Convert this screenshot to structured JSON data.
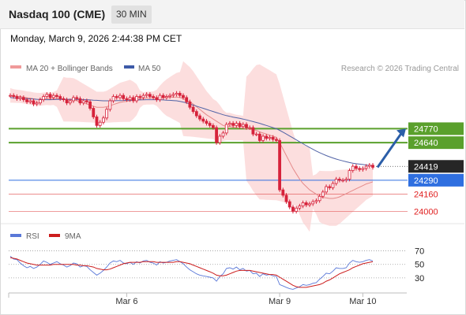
{
  "header": {
    "instrument": "Nasdaq 100 (CME)",
    "interval": "30 MIN",
    "timestamp": "Monday, March 9, 2026 2:44:38 PM CET"
  },
  "legend": {
    "bollinger": "MA 20 + Bollinger Bands",
    "ma50": "MA 50",
    "copyright": "Research © 2026 Trading Central",
    "rsi": "RSI",
    "rsi_ma": "9MA"
  },
  "colors": {
    "candle": "#d6233b",
    "band": "#fbd3d3",
    "ma20": "#e58a8a",
    "ma50": "#5163a6",
    "resistance": "#5aa02c",
    "pivot": "#2f6fe0",
    "support": "#e45a5a",
    "arrow": "#2b5ea8",
    "rsi": "#5a78d8",
    "rsi_ma": "#cc1d1d"
  },
  "chart_data": {
    "type": "candlestick",
    "x_ticks": [
      "Mar 6",
      "Mar 9",
      "Mar 10"
    ],
    "price_levels": [
      {
        "value": 24770,
        "label": "24770",
        "kind": "resistance"
      },
      {
        "value": 24640,
        "label": "24640",
        "kind": "resistance"
      },
      {
        "value": 24419,
        "label": "24419",
        "kind": "last"
      },
      {
        "value": 24290,
        "label": "24290",
        "kind": "pivot"
      },
      {
        "value": 24160,
        "label": "24160",
        "kind": "support"
      },
      {
        "value": 24000,
        "label": "24000",
        "kind": "support"
      }
    ],
    "price_close": [
      25080,
      25070,
      25050,
      25060,
      25040,
      25020,
      25030,
      25000,
      25010,
      25040,
      25070,
      25090,
      25060,
      25080,
      25070,
      25050,
      25040,
      25010,
      25030,
      25060,
      25050,
      25010,
      25030,
      25020,
      24960,
      24880,
      24800,
      24830,
      24870,
      24950,
      25030,
      25070,
      25060,
      25080,
      25050,
      25040,
      25060,
      25030,
      25070,
      25060,
      25080,
      25090,
      25070,
      25060,
      25040,
      25080,
      25060,
      25070,
      25080,
      25090,
      25100,
      25080,
      25060,
      25020,
      24970,
      24930,
      24890,
      24860,
      24840,
      24820,
      24800,
      24780,
      24640,
      24700,
      24730,
      24810,
      24820,
      24800,
      24820,
      24790,
      24810,
      24780,
      24780,
      24720,
      24720,
      24660,
      24700,
      24680,
      24690,
      24670,
      24660,
      24200,
      24150,
      24090,
      24040,
      24000,
      24030,
      24050,
      24080,
      24060,
      24070,
      24090,
      24100,
      24140,
      24180,
      24230,
      24220,
      24260,
      24300,
      24290,
      24290,
      24300,
      24380,
      24420,
      24400,
      24390,
      24400,
      24420,
      24430,
      24410
    ],
    "ma20": [
      25080,
      25075,
      25072,
      25070,
      25065,
      25058,
      25055,
      25048,
      25044,
      25043,
      25047,
      25050,
      25047,
      25052,
      25050,
      25048,
      25044,
      25040,
      25040,
      25038,
      25030,
      25020,
      25010,
      25000,
      24990,
      24980,
      24970,
      24970,
      24970,
      24975,
      24985,
      24995,
      25005,
      25015,
      25020,
      25025,
      25030,
      25035,
      25040,
      25045,
      25050,
      25055,
      25055,
      25057,
      25058,
      25060,
      25060,
      25060,
      25062,
      25064,
      25065,
      25060,
      25050,
      25035,
      25020,
      25000,
      24975,
      24950,
      24925,
      24900,
      24880,
      24860,
      24840,
      24820,
      24800,
      24790,
      24790,
      24785,
      24780,
      24778,
      24775,
      24770,
      24765,
      24760,
      24755,
      24740,
      24730,
      24720,
      24710,
      24700,
      24690,
      24640,
      24580,
      24520,
      24460,
      24400,
      24350,
      24300,
      24260,
      24230,
      24200,
      24180,
      24160,
      24140,
      24130,
      24125,
      24120,
      24120,
      24125,
      24135,
      24150,
      24165,
      24180,
      24195,
      24210,
      24225,
      24240,
      24255,
      24265,
      24275
    ],
    "ma50": [
      25060,
      25058,
      25056,
      25054,
      25052,
      25050,
      25048,
      25046,
      25044,
      25042,
      25040,
      25040,
      25040,
      25041,
      25042,
      25043,
      25044,
      25044,
      25044,
      25044,
      25043,
      25042,
      25041,
      25040,
      25038,
      25036,
      25034,
      25032,
      25030,
      25030,
      25030,
      25030,
      25031,
      25032,
      25033,
      25034,
      25035,
      25036,
      25037,
      25038,
      25039,
      25040,
      25040,
      25040,
      25040,
      25039,
      25038,
      25036,
      25034,
      25032,
      25030,
      25025,
      25018,
      25010,
      25000,
      24990,
      24980,
      24970,
      24960,
      24950,
      24940,
      24930,
      24920,
      24910,
      24900,
      24892,
      24885,
      24878,
      24872,
      24866,
      24860,
      24852,
      24844,
      24836,
      24828,
      24820,
      24810,
      24800,
      24790,
      24780,
      24770,
      24755,
      24738,
      24720,
      24702,
      24684,
      24666,
      24648,
      24630,
      24612,
      24595,
      24578,
      24562,
      24547,
      24533,
      24520,
      24508,
      24497,
      24487,
      24478,
      24470,
      24462,
      24455,
      24449,
      24444,
      24440,
      24436,
      24432,
      24428,
      24425
    ],
    "rsi": [
      62,
      58,
      57,
      52,
      48,
      45,
      47,
      44,
      46,
      50,
      55,
      53,
      50,
      52,
      54,
      51,
      49,
      46,
      48,
      52,
      51,
      46,
      48,
      47,
      42,
      38,
      34,
      37,
      41,
      46,
      52,
      55,
      54,
      56,
      52,
      51,
      53,
      50,
      54,
      52,
      55,
      56,
      53,
      52,
      49,
      54,
      52,
      53,
      55,
      56,
      57,
      54,
      51,
      46,
      42,
      39,
      36,
      34,
      33,
      32,
      31,
      30,
      25,
      32,
      36,
      44,
      45,
      43,
      46,
      42,
      44,
      40,
      41,
      36,
      37,
      32,
      36,
      34,
      35,
      33,
      32,
      20,
      18,
      16,
      14,
      13,
      15,
      17,
      20,
      19,
      20,
      22,
      23,
      28,
      32,
      37,
      36,
      40,
      45,
      44,
      44,
      45,
      52,
      56,
      54,
      53,
      54,
      56,
      57,
      55
    ],
    "rsi_ma": [
      60,
      59,
      58,
      56,
      54,
      52,
      51,
      50,
      49,
      49,
      49,
      49,
      49,
      50,
      50,
      50,
      50,
      50,
      50,
      50,
      49,
      49,
      48,
      48,
      47,
      46,
      44,
      43,
      42,
      42,
      43,
      45,
      47,
      49,
      51,
      52,
      53,
      53,
      53,
      53,
      54,
      54,
      54,
      54,
      53,
      53,
      53,
      53,
      53,
      53,
      54,
      54,
      53,
      52,
      51,
      49,
      47,
      45,
      43,
      41,
      39,
      37,
      34,
      33,
      33,
      34,
      36,
      38,
      40,
      41,
      41,
      41,
      41,
      40,
      39,
      38,
      37,
      36,
      35,
      35,
      34,
      31,
      28,
      25,
      22,
      19,
      17,
      16,
      16,
      16,
      17,
      18,
      19,
      20,
      22,
      25,
      27,
      30,
      33,
      36,
      38,
      40,
      42,
      45,
      47,
      49,
      51,
      52,
      53,
      54
    ],
    "rsi_levels": [
      70,
      50,
      30
    ],
    "price_ylim": [
      23900,
      25250
    ],
    "rsi_ylim": [
      10,
      80
    ]
  }
}
